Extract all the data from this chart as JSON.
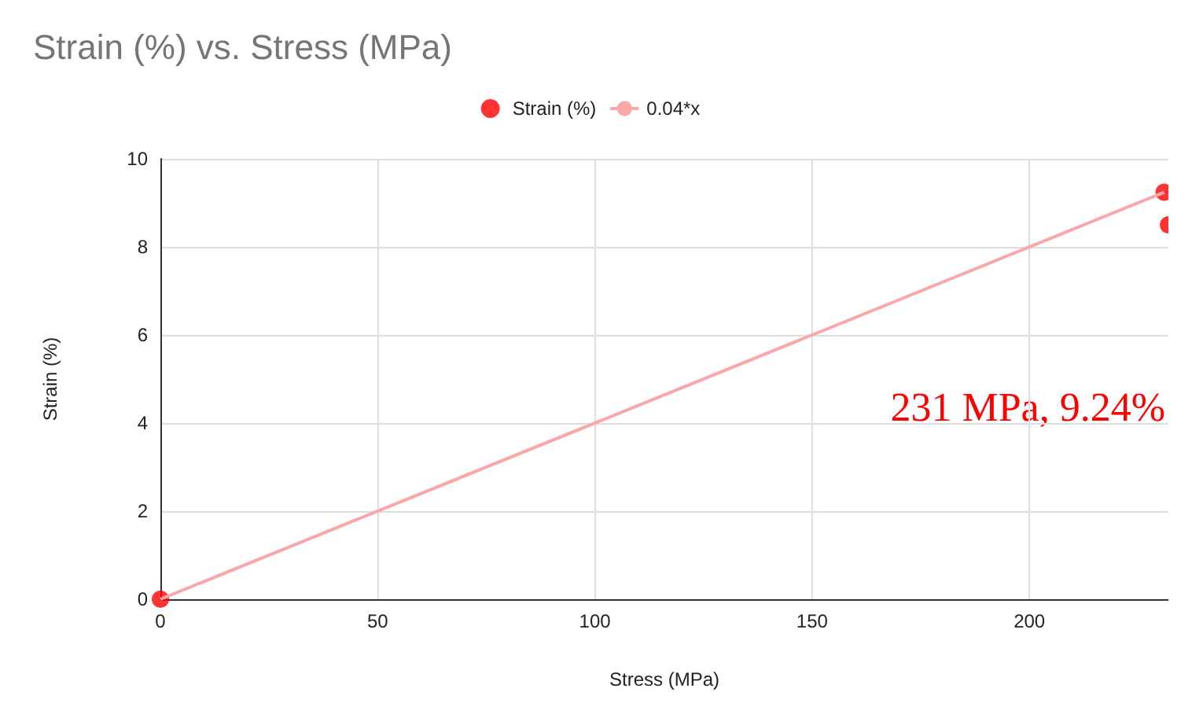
{
  "chart_data": {
    "type": "scatter",
    "title": "Strain (%) vs. Stress (MPa)",
    "xlabel": "Stress (MPa)",
    "ylabel": "Strain (%)",
    "series": [
      {
        "name": "Strain (%)",
        "color": "#ff0000",
        "marker": "circle",
        "x": [
          0,
          231,
          232
        ],
        "values": [
          0,
          9.24,
          8.5
        ]
      },
      {
        "name": "0.04*x",
        "type": "line",
        "marker": "none",
        "color": "#f8a8a8",
        "x": [
          0,
          231
        ],
        "values": [
          0,
          9.24
        ]
      }
    ],
    "annotations": [
      "231 MPa, 9.24%"
    ],
    "xlim": [
      0,
      232
    ],
    "xticks": [
      0,
      50,
      100,
      150,
      200
    ],
    "ylim": [
      0,
      10
    ],
    "yticks": [
      0,
      2,
      4,
      6,
      8,
      10
    ],
    "grid": true,
    "legend": "top"
  }
}
